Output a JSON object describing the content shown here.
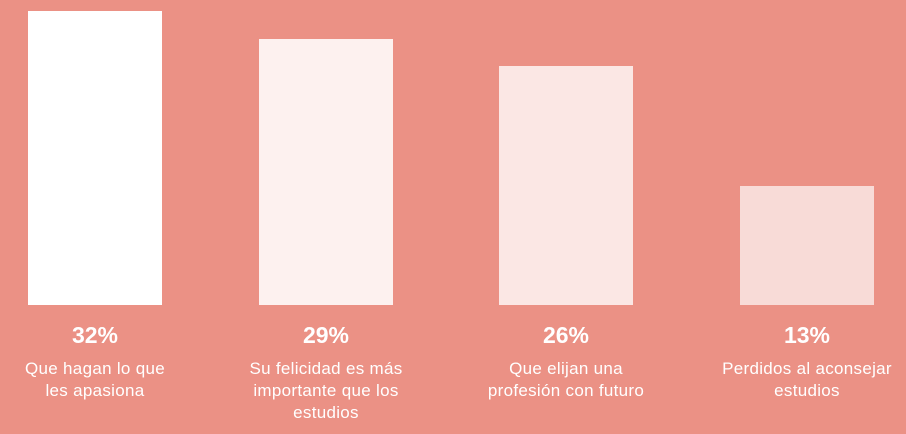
{
  "chart_data": {
    "type": "bar",
    "categories": [
      "Que hagan lo que les apasiona",
      "Su felicidad es más importante que los estudios",
      "Que elijan una profesión con futuro",
      "Perdidos al aconsejar estudios"
    ],
    "values": [
      32,
      29,
      26,
      13
    ],
    "value_labels": [
      "32%",
      "29%",
      "26%",
      "13%"
    ],
    "colors": [
      "#ffffff",
      "#fdf1ef",
      "#fbe7e4",
      "#f8dbd7"
    ]
  }
}
